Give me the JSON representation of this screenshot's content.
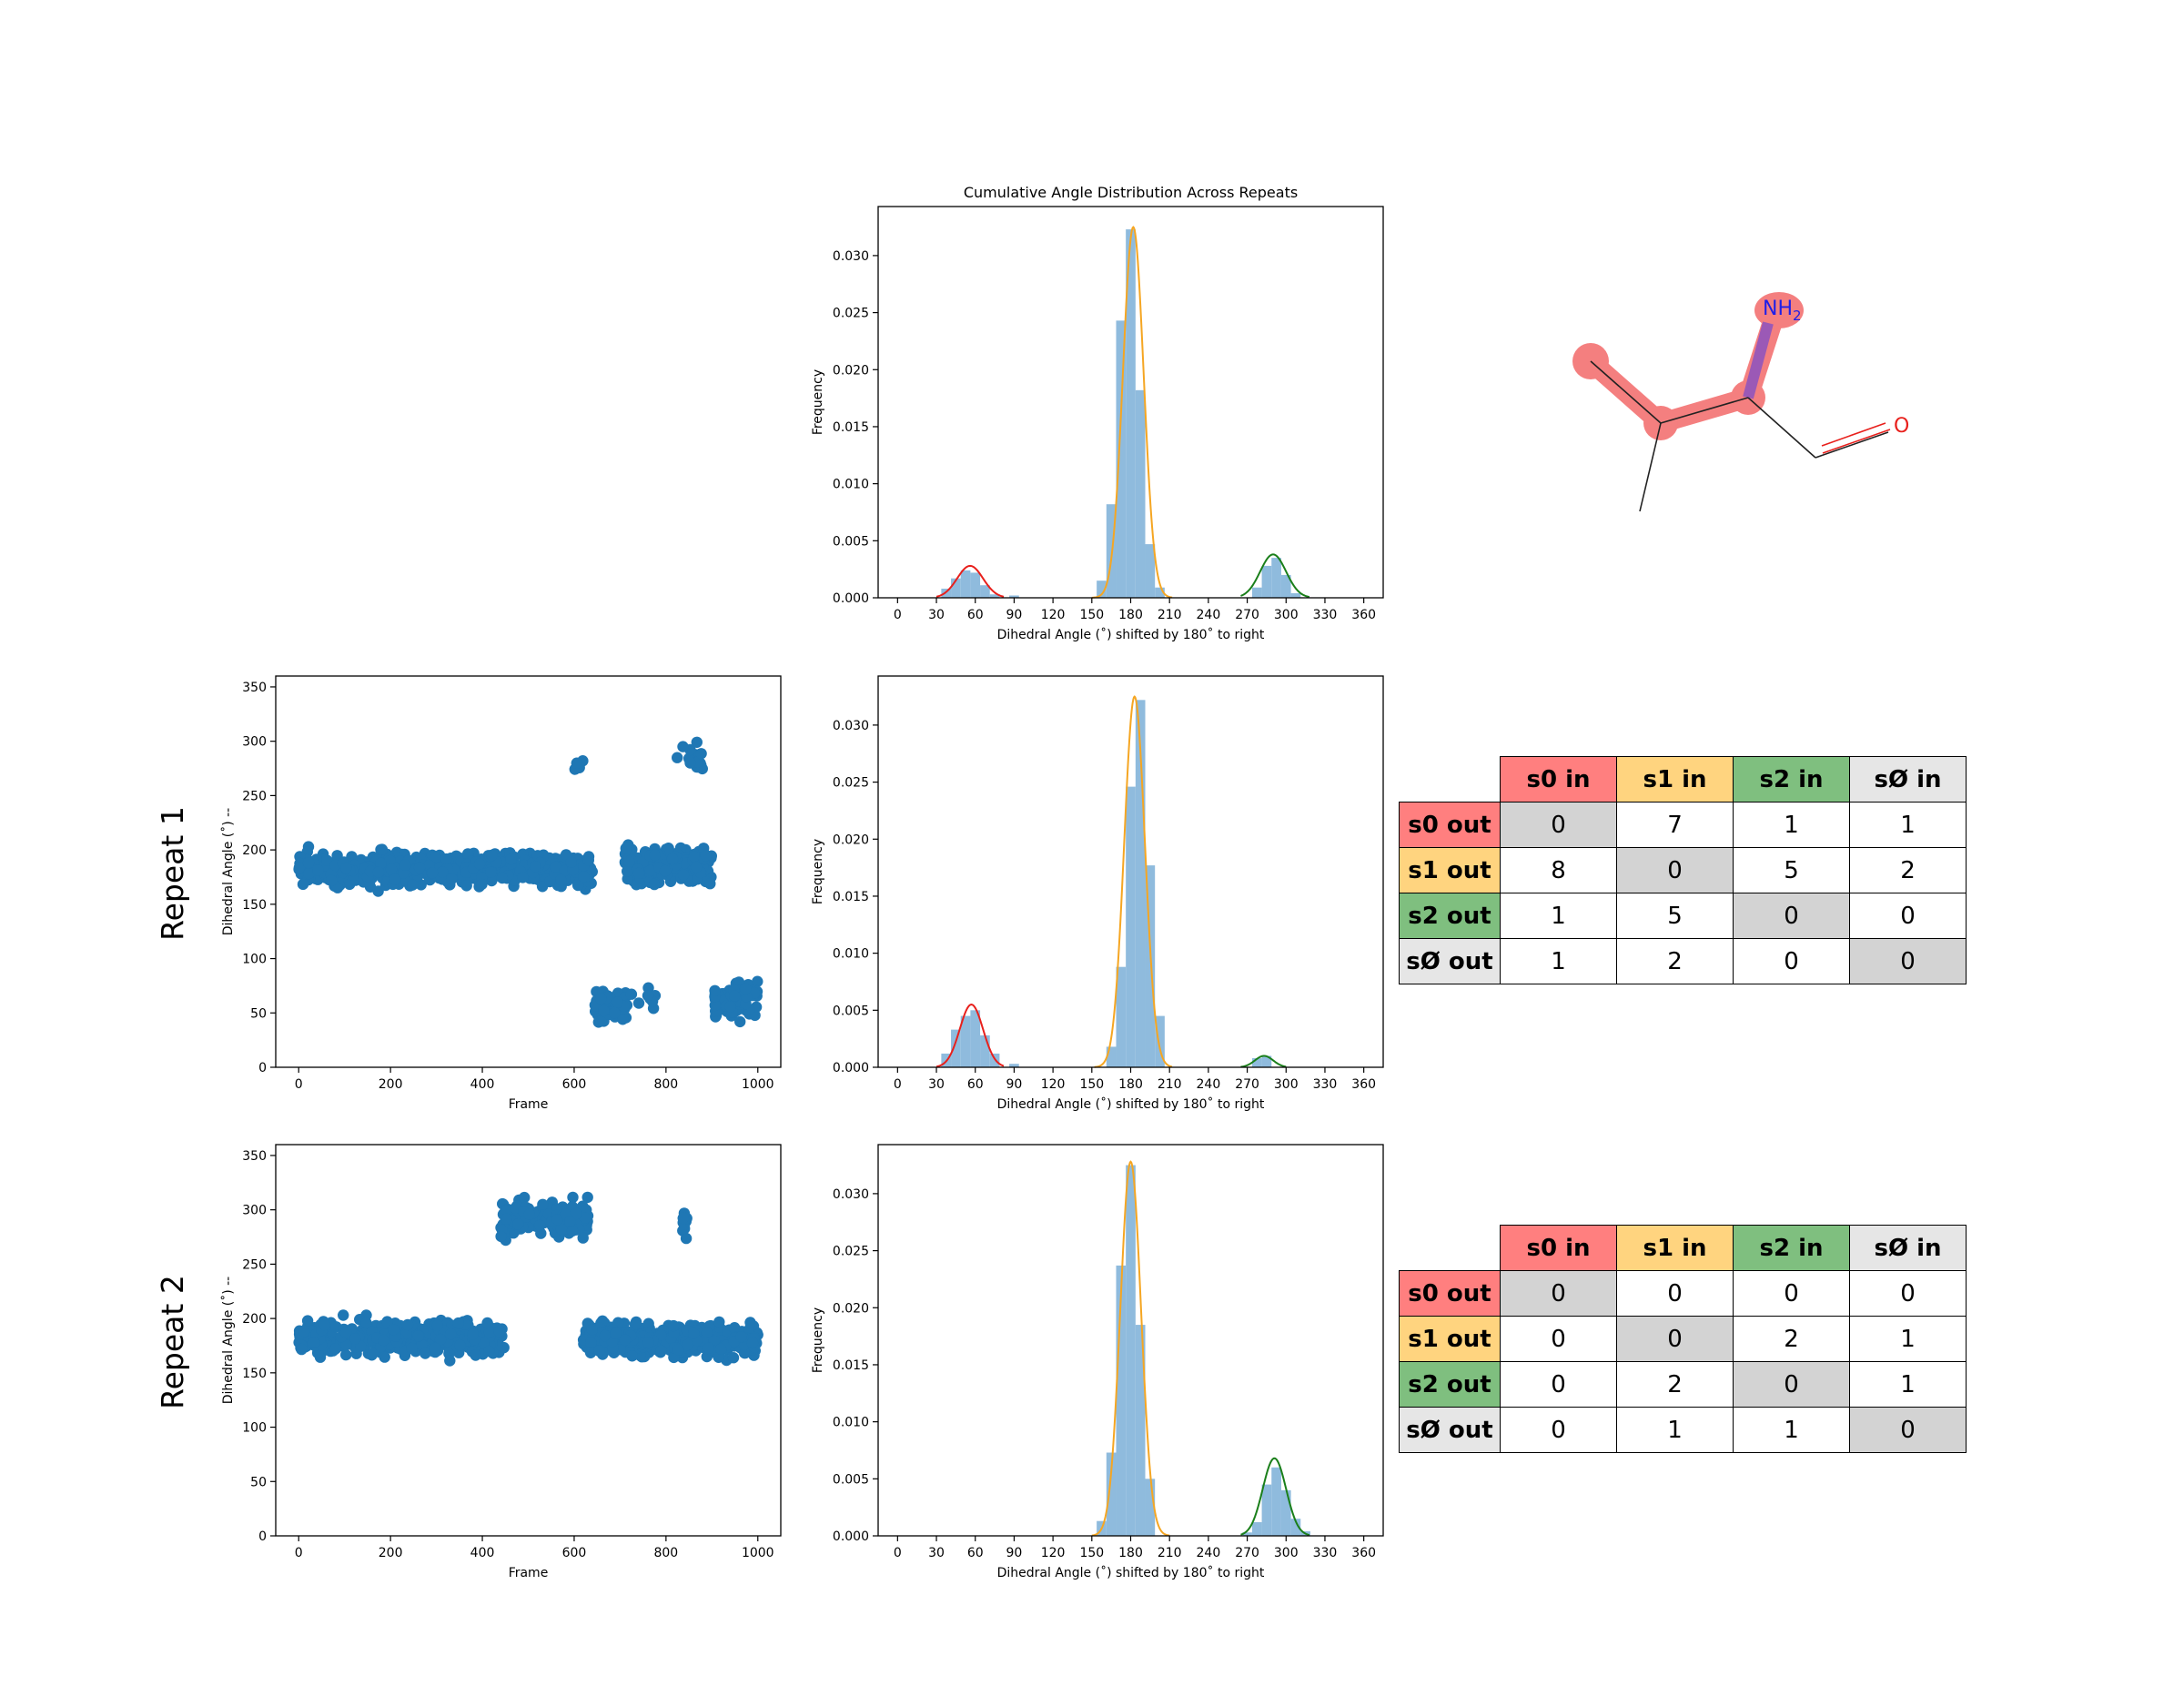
{
  "row_labels": [
    "Repeat 1",
    "Repeat 2"
  ],
  "colors": {
    "s0": "#ff7f7f",
    "s1": "#ffd47f",
    "s2": "#7fbf7f",
    "sx": "#e6e6e6",
    "diag": "#d3d3d3",
    "scatter": "#1f77b4",
    "hist": "#8fbbdd",
    "fit_s0": "#e8201c",
    "fit_s1": "#f5a623",
    "fit_s2": "#1a7f1a"
  },
  "transition_tables": {
    "col_headers": [
      "s0 in",
      "s1 in",
      "s2 in",
      "sØ in"
    ],
    "row_headers": [
      "s0 out",
      "s1 out",
      "s2 out",
      "sØ out"
    ],
    "repeat1": [
      [
        0,
        7,
        1,
        1
      ],
      [
        8,
        0,
        5,
        2
      ],
      [
        1,
        5,
        0,
        0
      ],
      [
        1,
        2,
        0,
        0
      ]
    ],
    "repeat2": [
      [
        0,
        0,
        0,
        0
      ],
      [
        0,
        0,
        2,
        1
      ],
      [
        0,
        2,
        0,
        1
      ],
      [
        0,
        1,
        1,
        0
      ]
    ]
  },
  "molecule": {
    "atom_labels": [
      "NH2",
      "O"
    ]
  },
  "chart_data": [
    {
      "id": "cumulative",
      "type": "bar",
      "title": "Cumulative Angle Distribution Across Repeats",
      "xlabel": "Dihedral Angle (˚) shifted by 180˚ to right",
      "ylabel": "Frequency",
      "xlim": [
        -15,
        375
      ],
      "ylim": [
        0,
        0.0343
      ],
      "xticks": [
        0,
        30,
        60,
        90,
        120,
        150,
        180,
        210,
        240,
        270,
        300,
        330,
        360
      ],
      "yticks": [
        0.0,
        0.005,
        0.01,
        0.015,
        0.02,
        0.025,
        0.03
      ],
      "bin_width": 7.5,
      "bins": [
        [
          37.5,
          0.0008
        ],
        [
          45,
          0.0017
        ],
        [
          52.5,
          0.0024
        ],
        [
          60,
          0.0022
        ],
        [
          67.5,
          0.0011
        ],
        [
          75,
          0.0003
        ],
        [
          90,
          0.0002
        ],
        [
          157.5,
          0.0015
        ],
        [
          165,
          0.0082
        ],
        [
          172.5,
          0.0243
        ],
        [
          180,
          0.0323
        ],
        [
          187.5,
          0.0182
        ],
        [
          195,
          0.0047
        ],
        [
          202.5,
          0.0009
        ],
        [
          277.5,
          0.0009
        ],
        [
          285,
          0.0028
        ],
        [
          292.5,
          0.0035
        ],
        [
          300,
          0.002
        ],
        [
          307.5,
          0.0004
        ]
      ],
      "fits": [
        {
          "state": "s0",
          "mu": 56,
          "sigma": 10,
          "amp": 0.0028,
          "range": [
            30,
            82
          ]
        },
        {
          "state": "s1",
          "mu": 182,
          "sigma": 8,
          "amp": 0.0325,
          "range": [
            150,
            212
          ]
        },
        {
          "state": "s2",
          "mu": 290,
          "sigma": 10,
          "amp": 0.0038,
          "range": [
            265,
            318
          ]
        }
      ]
    },
    {
      "id": "repeat1_hist",
      "type": "bar",
      "xlabel": "Dihedral Angle (˚) shifted by 180˚ to right",
      "ylabel": "Frequency",
      "xlim": [
        -15,
        375
      ],
      "ylim": [
        0,
        0.0343
      ],
      "xticks": [
        0,
        30,
        60,
        90,
        120,
        150,
        180,
        210,
        240,
        270,
        300,
        330,
        360
      ],
      "yticks": [
        0.0,
        0.005,
        0.01,
        0.015,
        0.02,
        0.025,
        0.03
      ],
      "bin_width": 7.5,
      "bins": [
        [
          37.5,
          0.0012
        ],
        [
          45,
          0.0033
        ],
        [
          52.5,
          0.0045
        ],
        [
          60,
          0.005
        ],
        [
          67.5,
          0.0028
        ],
        [
          75,
          0.0012
        ],
        [
          90,
          0.0003
        ],
        [
          165,
          0.0018
        ],
        [
          172.5,
          0.0088
        ],
        [
          180,
          0.0246
        ],
        [
          187.5,
          0.0322
        ],
        [
          195,
          0.0177
        ],
        [
          202.5,
          0.0045
        ],
        [
          277.5,
          0.0008
        ],
        [
          285,
          0.001
        ]
      ],
      "fits": [
        {
          "state": "s0",
          "mu": 57,
          "sigma": 9,
          "amp": 0.0055,
          "range": [
            30,
            82
          ]
        },
        {
          "state": "s1",
          "mu": 183,
          "sigma": 8,
          "amp": 0.0325,
          "range": [
            152,
            212
          ]
        },
        {
          "state": "s2",
          "mu": 283,
          "sigma": 7,
          "amp": 0.001,
          "range": [
            265,
            300
          ]
        }
      ]
    },
    {
      "id": "repeat2_hist",
      "type": "bar",
      "xlabel": "Dihedral Angle (˚) shifted by 180˚ to right",
      "ylabel": "Frequency",
      "xlim": [
        -15,
        375
      ],
      "ylim": [
        0,
        0.0343
      ],
      "xticks": [
        0,
        30,
        60,
        90,
        120,
        150,
        180,
        210,
        240,
        270,
        300,
        330,
        360
      ],
      "yticks": [
        0.0,
        0.005,
        0.01,
        0.015,
        0.02,
        0.025,
        0.03
      ],
      "bin_width": 7.5,
      "bins": [
        [
          157.5,
          0.0013
        ],
        [
          165,
          0.0073
        ],
        [
          172.5,
          0.0237
        ],
        [
          180,
          0.0325
        ],
        [
          187.5,
          0.0185
        ],
        [
          195,
          0.005
        ],
        [
          270,
          0.0003
        ],
        [
          277.5,
          0.0012
        ],
        [
          285,
          0.0045
        ],
        [
          292.5,
          0.006
        ],
        [
          300,
          0.004
        ],
        [
          307.5,
          0.0015
        ],
        [
          315,
          0.0004
        ]
      ],
      "fits": [
        {
          "state": "s1",
          "mu": 180,
          "sigma": 8,
          "amp": 0.0328,
          "range": [
            150,
            210
          ]
        },
        {
          "state": "s2",
          "mu": 291,
          "sigma": 9,
          "amp": 0.0068,
          "range": [
            265,
            318
          ]
        }
      ]
    },
    {
      "id": "repeat1_scatter",
      "type": "scatter",
      "xlabel": "Frame",
      "ylabel": "Dihedral Angle (˚) --",
      "xlim": [
        -50,
        1050
      ],
      "ylim": [
        0,
        360
      ],
      "xticks": [
        0,
        200,
        400,
        600,
        800,
        1000
      ],
      "yticks": [
        0,
        50,
        100,
        150,
        200,
        250,
        300,
        350
      ],
      "segments": [
        {
          "x": [
            0,
            640
          ],
          "center": 182,
          "spread": 10
        },
        {
          "x": [
            600,
            620
          ],
          "center": 280,
          "spread": 8,
          "n": 4
        },
        {
          "x": [
            645,
            715
          ],
          "center": 55,
          "spread": 10
        },
        {
          "x": [
            700,
            780
          ],
          "center": 60,
          "spread": 15,
          "n": 8
        },
        {
          "x": [
            710,
            900
          ],
          "center": 185,
          "spread": 10
        },
        {
          "x": [
            850,
            880
          ],
          "center": 285,
          "spread": 10,
          "n": 12
        },
        {
          "x": [
            820,
            840
          ],
          "center": 295,
          "spread": 8,
          "n": 2
        },
        {
          "x": [
            905,
            1000
          ],
          "center": 60,
          "spread": 11
        }
      ]
    },
    {
      "id": "repeat2_scatter",
      "type": "scatter",
      "xlabel": "Frame",
      "ylabel": "Dihedral Angle (˚) --",
      "xlim": [
        -50,
        1050
      ],
      "ylim": [
        0,
        360
      ],
      "xticks": [
        0,
        200,
        400,
        600,
        800,
        1000
      ],
      "yticks": [
        0,
        50,
        100,
        150,
        200,
        250,
        300,
        350
      ],
      "segments": [
        {
          "x": [
            0,
            450
          ],
          "center": 182,
          "spread": 10
        },
        {
          "x": [
            440,
            630
          ],
          "center": 292,
          "spread": 11
        },
        {
          "x": [
            620,
            1000
          ],
          "center": 180,
          "spread": 10
        },
        {
          "x": [
            835,
            850
          ],
          "center": 290,
          "spread": 10,
          "n": 10
        }
      ]
    }
  ]
}
